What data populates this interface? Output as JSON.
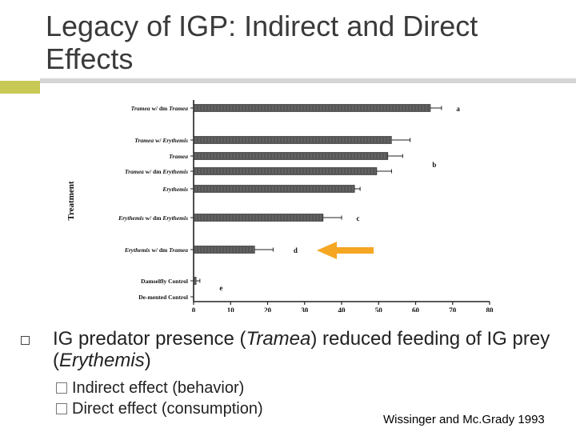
{
  "slide": {
    "title": "Legacy of IGP: Indirect and Direct Effects",
    "bullet": {
      "pre": "IG predator presence (",
      "italic1": "Tramea",
      "mid": ") reduced feeding of IG prey (",
      "italic2": "Erythemis",
      "post": ")"
    },
    "sub_bullets": [
      "Indirect effect (behavior)",
      "Direct effect (consumption)"
    ],
    "citation": "Wissinger and Mc.Grady 1993",
    "colors": {
      "accent_bar": "#c8c855",
      "arrow": "#f5a623",
      "bar_fill": "#555555"
    }
  },
  "chart_data": {
    "type": "bar",
    "orientation": "horizontal",
    "ylabel": "Treatment",
    "xlim": [
      0,
      80
    ],
    "xticks": [
      0,
      10,
      20,
      30,
      40,
      50,
      60,
      70,
      80
    ],
    "grid": false,
    "categories": [
      {
        "label": [
          [
            "Tramea",
            true
          ],
          [
            " w/ dm ",
            false
          ],
          [
            "Tramea",
            true
          ]
        ],
        "value": 64,
        "error": 3,
        "letter": "a"
      },
      {
        "label": [
          [
            "Tramea",
            true
          ],
          [
            " w/ ",
            false
          ],
          [
            "Erythemis",
            true
          ]
        ],
        "value": 53.5,
        "error": 5,
        "letter": ""
      },
      {
        "label": [
          [
            "Tramea",
            true
          ]
        ],
        "value": 52.5,
        "error": 4,
        "letter": "b"
      },
      {
        "label": [
          [
            "Tramea",
            true
          ],
          [
            " w/  dm  ",
            false
          ],
          [
            "Erythemis",
            true
          ]
        ],
        "value": 49.5,
        "error": 4,
        "letter": ""
      },
      {
        "label": [
          [
            "Erythemis",
            true
          ]
        ],
        "value": 43.5,
        "error": 1.5,
        "letter": ""
      },
      {
        "label": [
          [
            "Erythemis",
            true
          ],
          [
            " w/  dm  ",
            false
          ],
          [
            "Erythemis",
            true
          ]
        ],
        "value": 35,
        "error": 5,
        "letter": "c"
      },
      {
        "label": [
          [
            "Erythemis",
            true
          ],
          [
            " w/  dm ",
            false
          ],
          [
            "Tramea",
            true
          ]
        ],
        "value": 16.5,
        "error": 5,
        "letter": "d"
      },
      {
        "label": [
          [
            "Damselfly Control",
            false
          ]
        ],
        "value": 0.7,
        "error": 1,
        "letter": "e"
      },
      {
        "label": [
          [
            "De-mented Control",
            false
          ]
        ],
        "value": 0,
        "error": 0,
        "letter": ""
      }
    ],
    "annotation": {
      "type": "arrow",
      "direction": "left",
      "points_to": "Erythemis w/ dm Tramea",
      "color": "#f5a623"
    }
  }
}
